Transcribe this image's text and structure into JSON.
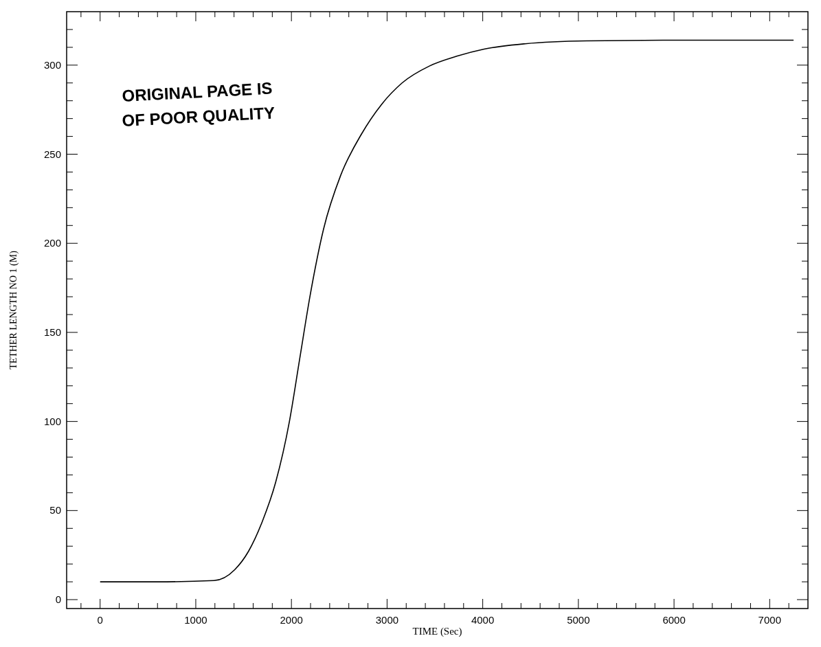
{
  "chart_data": {
    "type": "line",
    "xlabel": "TIME (Sec)",
    "ylabel": "TETHER LENGTH NO 1 (M)",
    "x": [
      0,
      600,
      1190,
      1407,
      1550,
      1693,
      1836,
      1979,
      2086,
      2193,
      2336,
      2514,
      2729,
      2943,
      3157,
      3443,
      3729,
      4014,
      4443,
      5086,
      6000,
      7250
    ],
    "series": [
      {
        "color": "#000000",
        "values": [
          10,
          10,
          10.7,
          16.8,
          27,
          43.5,
          66,
          100,
          135,
          170,
          208,
          238,
          261,
          278,
          290,
          299.5,
          305,
          309,
          312,
          313.6,
          314,
          314
        ]
      }
    ],
    "xlim": [
      -350,
      7400
    ],
    "ylim": [
      -5,
      330
    ],
    "xticks": [
      {
        "value": -200,
        "label": null
      },
      0,
      {
        "value": 200,
        "label": null
      },
      {
        "value": 400,
        "label": null
      },
      {
        "value": 600,
        "label": null
      },
      {
        "value": 800,
        "label": null
      },
      1000,
      {
        "value": 1200,
        "label": null
      },
      {
        "value": 1400,
        "label": null
      },
      {
        "value": 1600,
        "label": null
      },
      {
        "value": 1800,
        "label": null
      },
      2000,
      {
        "value": 2200,
        "label": null
      },
      {
        "value": 2400,
        "label": null
      },
      {
        "value": 2600,
        "label": null
      },
      {
        "value": 2800,
        "label": null
      },
      3000,
      {
        "value": 3200,
        "label": null
      },
      {
        "value": 3400,
        "label": null
      },
      {
        "value": 3600,
        "label": null
      },
      {
        "value": 3800,
        "label": null
      },
      4000,
      {
        "value": 4200,
        "label": null
      },
      {
        "value": 4400,
        "label": null
      },
      {
        "value": 4600,
        "label": null
      },
      {
        "value": 4800,
        "label": null
      },
      5000,
      {
        "value": 5200,
        "label": null
      },
      {
        "value": 5400,
        "label": null
      },
      {
        "value": 5600,
        "label": null
      },
      {
        "value": 5800,
        "label": null
      },
      6000,
      {
        "value": 6200,
        "label": null
      },
      {
        "value": 6400,
        "label": null
      },
      {
        "value": 6600,
        "label": null
      },
      {
        "value": 6800,
        "label": null
      },
      7000,
      {
        "value": 7200,
        "label": null
      }
    ],
    "yticks": [
      0,
      {
        "value": 10,
        "label": null
      },
      {
        "value": 20,
        "label": null
      },
      {
        "value": 30,
        "label": null
      },
      {
        "value": 40,
        "label": null
      },
      50,
      {
        "value": 60,
        "label": null
      },
      {
        "value": 70,
        "label": null
      },
      {
        "value": 80,
        "label": null
      },
      {
        "value": 90,
        "label": null
      },
      100,
      {
        "value": 110,
        "label": null
      },
      {
        "value": 120,
        "label": null
      },
      {
        "value": 130,
        "label": null
      },
      {
        "value": 140,
        "label": null
      },
      150,
      {
        "value": 160,
        "label": null
      },
      {
        "value": 170,
        "label": null
      },
      {
        "value": 180,
        "label": null
      },
      {
        "value": 190,
        "label": null
      },
      200,
      {
        "value": 210,
        "label": null
      },
      {
        "value": 220,
        "label": null
      },
      {
        "value": 230,
        "label": null
      },
      {
        "value": 240,
        "label": null
      },
      250,
      {
        "value": 260,
        "label": null
      },
      {
        "value": 270,
        "label": null
      },
      {
        "value": 280,
        "label": null
      },
      {
        "value": 290,
        "label": null
      },
      300,
      {
        "value": 310,
        "label": null
      },
      {
        "value": 320,
        "label": null
      }
    ],
    "annotations": [
      "ORIGINAL PAGE IS",
      "OF POOR QUALITY"
    ],
    "grid": false,
    "marker": "none",
    "line_style": "solid"
  }
}
